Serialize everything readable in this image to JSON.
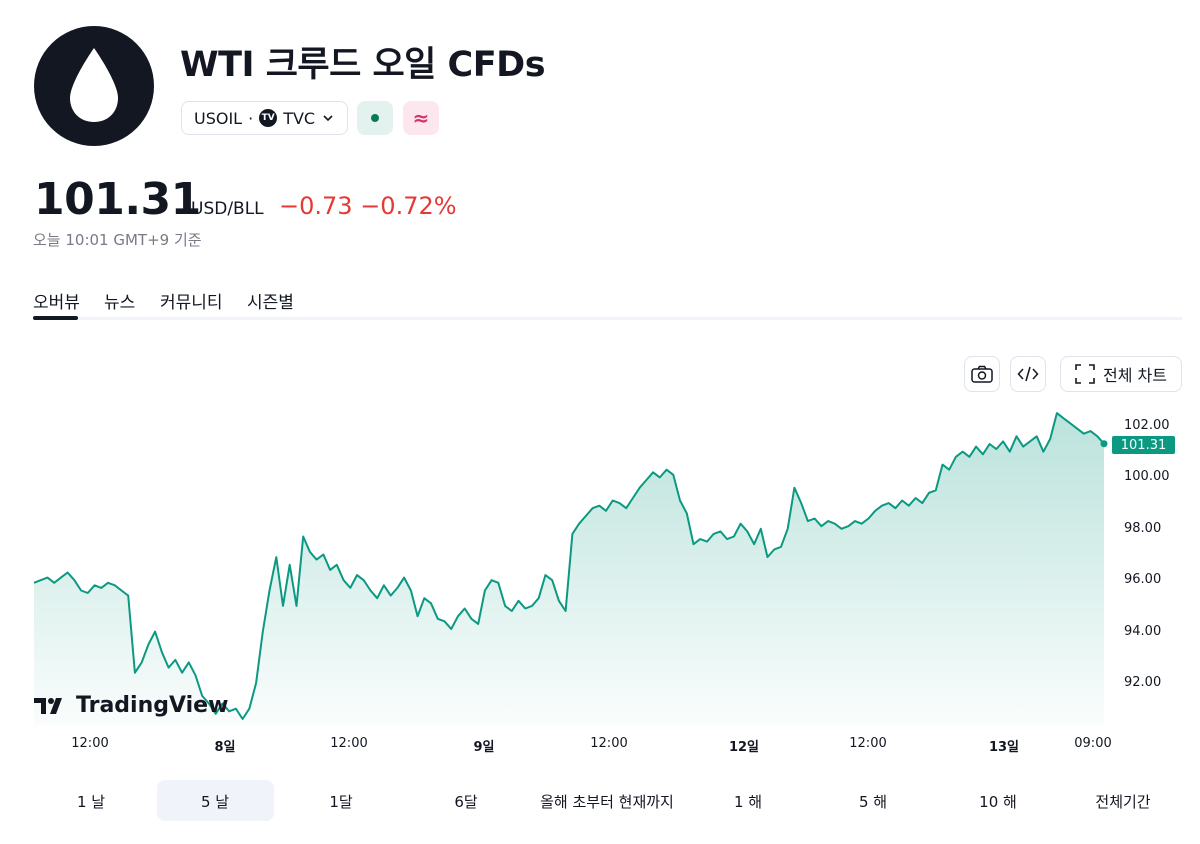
{
  "header": {
    "title": "WTI 크루드 오일 CFDs",
    "symbol": "USOIL",
    "separator": "·",
    "exchange": "TVC",
    "exchange_badge": "TV",
    "cfd_glyph": "≈",
    "logo_icon": "oil-drop-icon"
  },
  "quote": {
    "price": "101.31",
    "currency": "USD/BLL",
    "change": "−0.73",
    "change_pct": "−0.72%",
    "as_of": "오늘 10:01 GMT+9 기준",
    "negative_color": "#e53935"
  },
  "tabs": [
    {
      "label": "오버뷰",
      "active": true
    },
    {
      "label": "뉴스",
      "active": false
    },
    {
      "label": "커뮤니티",
      "active": false
    },
    {
      "label": "시즌별",
      "active": false
    }
  ],
  "toolbar": {
    "fullchart_label": "전체 차트"
  },
  "branding": {
    "tv_name": "TradingView"
  },
  "chart_data": {
    "type": "area",
    "line_color": "#0b9981",
    "fill_color": "#0b9981",
    "ylim": [
      90.5,
      103.0
    ],
    "y_ticks": [
      "102.00",
      "100.00",
      "98.00",
      "96.00",
      "94.00",
      "92.00"
    ],
    "x_ticks": [
      {
        "label": "12:00",
        "bold": false
      },
      {
        "label": "8일",
        "bold": true
      },
      {
        "label": "12:00",
        "bold": false
      },
      {
        "label": "9일",
        "bold": true
      },
      {
        "label": "12:00",
        "bold": false
      },
      {
        "label": "12일",
        "bold": true
      },
      {
        "label": "12:00",
        "bold": false
      },
      {
        "label": "13일",
        "bold": true
      },
      {
        "label": "09:00",
        "bold": false
      }
    ],
    "last_value_label": "101.31",
    "values": [
      95.9,
      96.0,
      96.1,
      95.9,
      96.1,
      96.3,
      96.0,
      95.6,
      95.5,
      95.8,
      95.7,
      95.9,
      95.8,
      95.6,
      95.4,
      92.4,
      92.8,
      93.5,
      94.0,
      93.2,
      92.6,
      92.9,
      92.4,
      92.8,
      92.3,
      91.5,
      91.2,
      90.8,
      91.2,
      90.9,
      91.0,
      90.6,
      91.0,
      92.0,
      94.0,
      95.6,
      96.9,
      95.0,
      96.6,
      95.0,
      97.7,
      97.1,
      96.8,
      97.0,
      96.4,
      96.6,
      96.0,
      95.7,
      96.2,
      96.0,
      95.6,
      95.3,
      95.8,
      95.4,
      95.7,
      96.1,
      95.6,
      94.6,
      95.3,
      95.1,
      94.5,
      94.4,
      94.1,
      94.6,
      94.9,
      94.5,
      94.3,
      95.6,
      96.0,
      95.9,
      95.0,
      94.8,
      95.2,
      94.9,
      95.0,
      95.3,
      96.2,
      96.0,
      95.2,
      94.8,
      97.8,
      98.2,
      98.5,
      98.8,
      98.9,
      98.7,
      99.1,
      99.0,
      98.8,
      99.2,
      99.6,
      99.9,
      100.2,
      100.0,
      100.3,
      100.1,
      99.1,
      98.6,
      97.4,
      97.6,
      97.5,
      97.8,
      97.9,
      97.6,
      97.7,
      98.2,
      97.9,
      97.4,
      98.0,
      96.9,
      97.2,
      97.3,
      98.0,
      99.6,
      99.0,
      98.3,
      98.4,
      98.1,
      98.3,
      98.2,
      98.0,
      98.1,
      98.3,
      98.2,
      98.4,
      98.7,
      98.9,
      99.0,
      98.8,
      99.1,
      98.9,
      99.2,
      99.0,
      99.4,
      99.5,
      100.5,
      100.3,
      100.8,
      101.0,
      100.8,
      101.2,
      100.9,
      101.3,
      101.1,
      101.4,
      101.0,
      101.6,
      101.2,
      101.4,
      101.6,
      101.0,
      101.5,
      102.5,
      102.3,
      102.1,
      101.9,
      101.7,
      101.8,
      101.6,
      101.31
    ]
  },
  "ranges": [
    {
      "label": "1 날",
      "active": false
    },
    {
      "label": "5 날",
      "active": true
    },
    {
      "label": "1달",
      "active": false
    },
    {
      "label": "6달",
      "active": false
    },
    {
      "label": "올해 초부터 현재까지",
      "active": false
    },
    {
      "label": "1 해",
      "active": false
    },
    {
      "label": "5 해",
      "active": false
    },
    {
      "label": "10 해",
      "active": false
    },
    {
      "label": "전체기간",
      "active": false
    }
  ]
}
